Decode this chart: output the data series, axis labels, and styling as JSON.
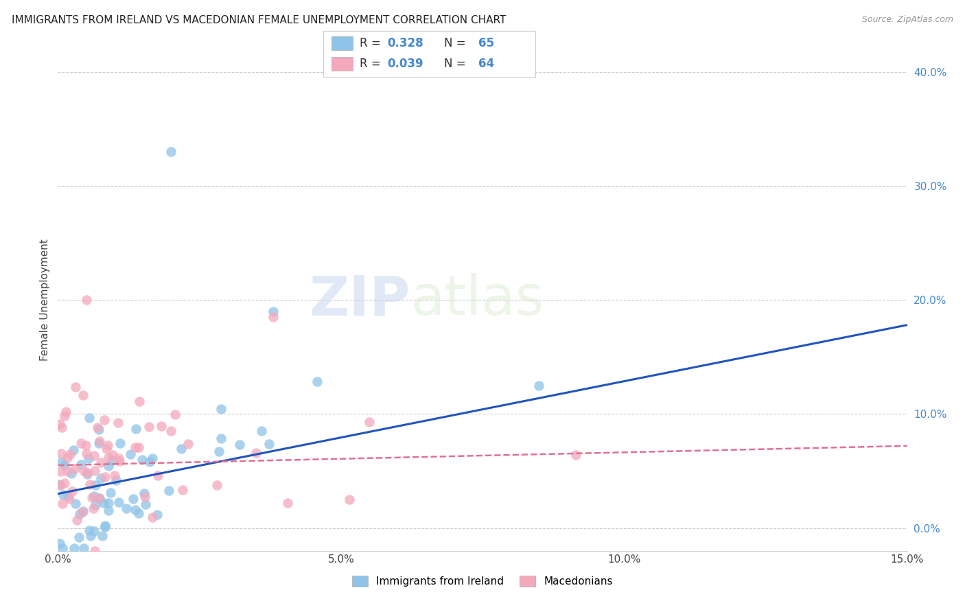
{
  "title": "IMMIGRANTS FROM IRELAND VS MACEDONIAN FEMALE UNEMPLOYMENT CORRELATION CHART",
  "source": "Source: ZipAtlas.com",
  "ylabel": "Female Unemployment",
  "xlim": [
    0,
    0.15
  ],
  "ylim": [
    -0.02,
    0.42
  ],
  "x_tick_vals": [
    0.0,
    0.05,
    0.1,
    0.15
  ],
  "x_tick_labels": [
    "0.0%",
    "5.0%",
    "10.0%",
    "15.0%"
  ],
  "y_tick_vals": [
    0.0,
    0.1,
    0.2,
    0.3,
    0.4
  ],
  "y_tick_labels": [
    "0.0%",
    "10.0%",
    "20.0%",
    "30.0%",
    "40.0%"
  ],
  "blue_color": "#8fc4e8",
  "pink_color": "#f4a8bc",
  "blue_line_color": "#2255bb",
  "pink_line_color": "#e07090",
  "blue_line_y0": 0.03,
  "blue_line_y1": 0.178,
  "pink_line_y0": 0.055,
  "pink_line_y1": 0.072,
  "axis_label_color": "#4488cc",
  "grid_color": "#cccccc",
  "watermark": "ZIPatlas",
  "background_color": "#ffffff",
  "legend_R1": "0.328",
  "legend_N1": "65",
  "legend_R2": "0.039",
  "legend_N2": "64",
  "blue_label": "Immigrants from Ireland",
  "pink_label": "Macedonians"
}
